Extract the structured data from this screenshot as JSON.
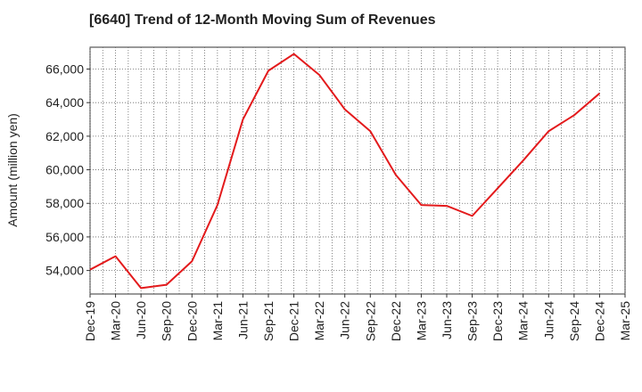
{
  "title": "[6640]  Trend of 12-Month Moving Sum of Revenues",
  "chart_data": {
    "type": "line",
    "title": "[6640]  Trend of 12-Month Moving Sum of Revenues",
    "xlabel": "",
    "ylabel": "Amount (million yen)",
    "x_ticks": [
      "Dec-19",
      "Mar-20",
      "Jun-20",
      "Sep-20",
      "Dec-20",
      "Mar-21",
      "Jun-21",
      "Sep-21",
      "Dec-21",
      "Mar-22",
      "Jun-22",
      "Sep-22",
      "Dec-22",
      "Mar-23",
      "Jun-23",
      "Sep-23",
      "Dec-23",
      "Mar-24",
      "Jun-24",
      "Sep-24",
      "Dec-24",
      "Mar-25"
    ],
    "y_ticks": [
      "54,000",
      "56,000",
      "58,000",
      "60,000",
      "62,000",
      "64,000",
      "66,000"
    ],
    "y_tick_values": [
      54000,
      56000,
      58000,
      60000,
      62000,
      64000,
      66000
    ],
    "ylim": [
      52600,
      67300
    ],
    "grid": true,
    "series": [
      {
        "color": "#e31a1c",
        "x": [
          "Dec-19",
          "Mar-20",
          "Jun-20",
          "Sep-20",
          "Dec-20",
          "Mar-21",
          "Jun-21",
          "Sep-21",
          "Dec-21",
          "Mar-22",
          "Jun-22",
          "Sep-22",
          "Dec-22",
          "Mar-23",
          "Jun-23",
          "Sep-23",
          "Dec-23",
          "Mar-24",
          "Jun-24",
          "Sep-24",
          "Dec-24"
        ],
        "values": [
          54050,
          54850,
          52950,
          53150,
          54550,
          57900,
          63000,
          65900,
          66900,
          65650,
          63600,
          62300,
          59700,
          57900,
          57850,
          57250,
          58900,
          60550,
          62300,
          63250,
          64550
        ]
      }
    ]
  }
}
